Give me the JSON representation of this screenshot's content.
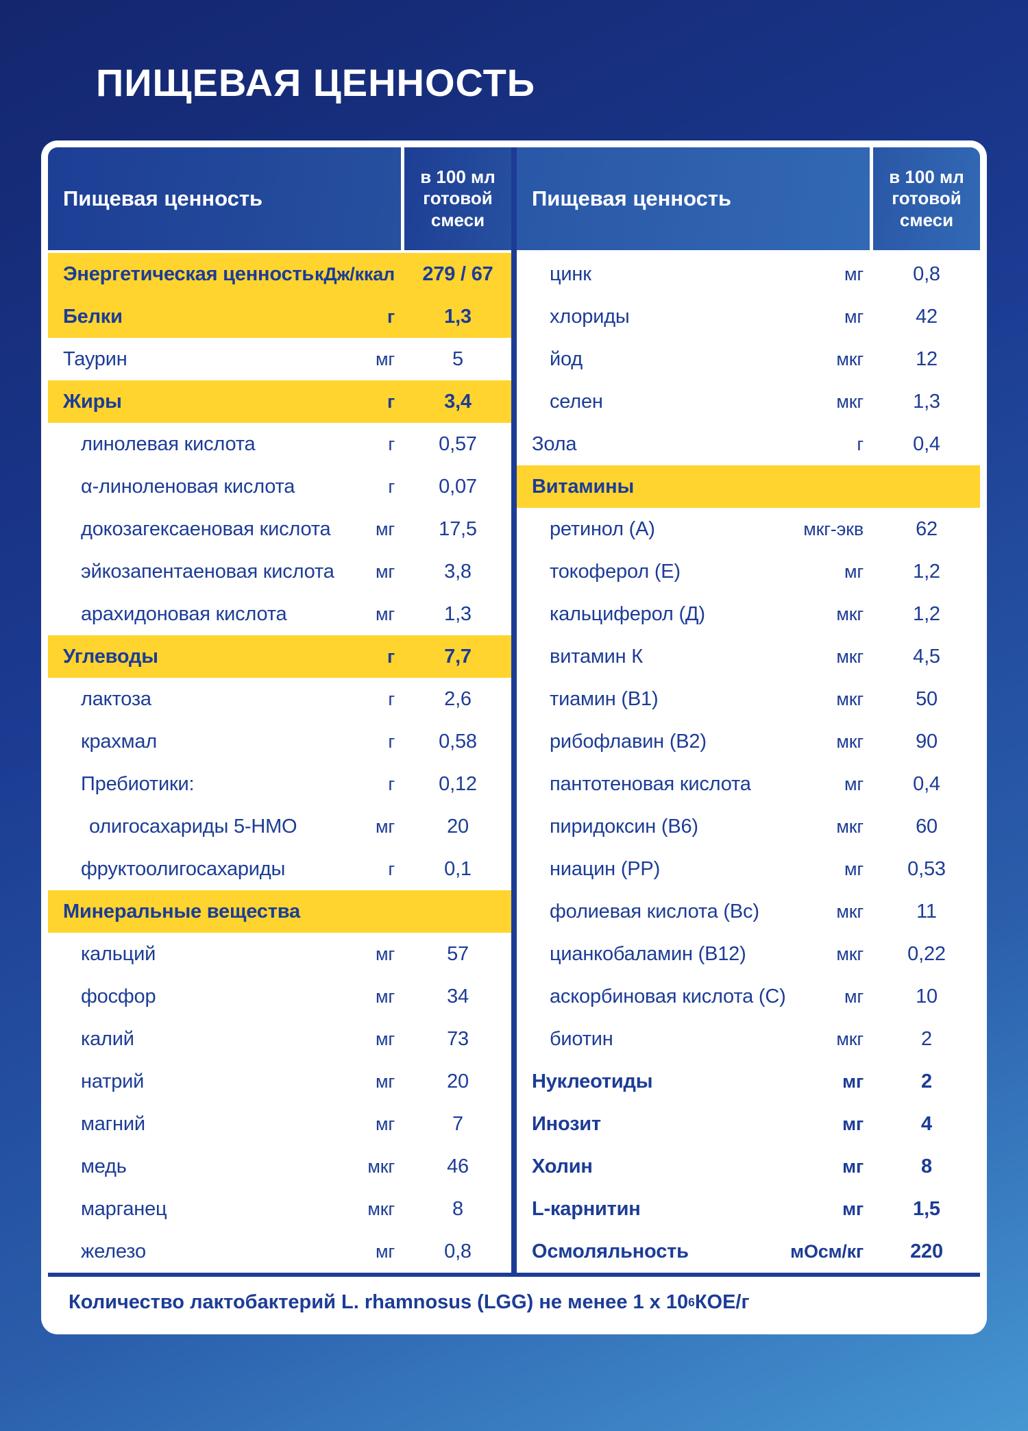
{
  "title": "ПИЩЕВАЯ ЦЕННОСТЬ",
  "colors": {
    "accent_yellow": "#FFD42E",
    "text_navy": "#1C3C96",
    "background_top": "#14266E",
    "background_bottom": "#4697D2"
  },
  "header": {
    "name_label": "Пищевая ценность",
    "value_label": "в 100 мл готовой смеси"
  },
  "tables": {
    "left": {
      "rows": [
        {
          "name": "Энергетическая ценность",
          "unit": "кДж/ккал",
          "value": "279 / 67",
          "style": "section",
          "indent": 0
        },
        {
          "name": "Белки",
          "unit": "г",
          "value": "1,3",
          "style": "section",
          "indent": 0
        },
        {
          "name": "Таурин",
          "unit": "мг",
          "value": "5",
          "style": "normal",
          "indent": 0
        },
        {
          "name": "Жиры",
          "unit": "г",
          "value": "3,4",
          "style": "section",
          "indent": 0
        },
        {
          "name": "линолевая кислота",
          "unit": "г",
          "value": "0,57",
          "style": "normal",
          "indent": 1
        },
        {
          "name": "α-линоленовая кислота",
          "unit": "г",
          "value": "0,07",
          "style": "normal",
          "indent": 1
        },
        {
          "name": "докозагексаеновая кислота",
          "unit": "мг",
          "value": "17,5",
          "style": "normal",
          "indent": 1
        },
        {
          "name": "эйкозапентаеновая кислота",
          "unit": "мг",
          "value": "3,8",
          "style": "normal",
          "indent": 1
        },
        {
          "name": "арахидоновая кислота",
          "unit": "мг",
          "value": "1,3",
          "style": "normal",
          "indent": 1
        },
        {
          "name": "Углеводы",
          "unit": "г",
          "value": "7,7",
          "style": "section",
          "indent": 0
        },
        {
          "name": "лактоза",
          "unit": "г",
          "value": "2,6",
          "style": "normal",
          "indent": 1
        },
        {
          "name": "крахмал",
          "unit": "г",
          "value": "0,58",
          "style": "normal",
          "indent": 1
        },
        {
          "name": "Пребиотики:",
          "unit": "г",
          "value": "0,12",
          "style": "normal",
          "indent": 1
        },
        {
          "name": "олигосахариды 5-НМО",
          "unit": "мг",
          "value": "20",
          "style": "normal",
          "indent": 2
        },
        {
          "name": "фруктоолигосахариды",
          "unit": "г",
          "value": "0,1",
          "style": "normal",
          "indent": 1
        },
        {
          "name": "Минеральные вещества",
          "unit": "",
          "value": "",
          "style": "section",
          "indent": 0
        },
        {
          "name": "кальций",
          "unit": "мг",
          "value": "57",
          "style": "normal",
          "indent": 1
        },
        {
          "name": "фосфор",
          "unit": "мг",
          "value": "34",
          "style": "normal",
          "indent": 1
        },
        {
          "name": "калий",
          "unit": "мг",
          "value": "73",
          "style": "normal",
          "indent": 1
        },
        {
          "name": "натрий",
          "unit": "мг",
          "value": "20",
          "style": "normal",
          "indent": 1
        },
        {
          "name": "магний",
          "unit": "мг",
          "value": "7",
          "style": "normal",
          "indent": 1
        },
        {
          "name": "медь",
          "unit": "мкг",
          "value": "46",
          "style": "normal",
          "indent": 1
        },
        {
          "name": "марганец",
          "unit": "мкг",
          "value": "8",
          "style": "normal",
          "indent": 1
        },
        {
          "name": "железо",
          "unit": "мг",
          "value": "0,8",
          "style": "normal",
          "indent": 1
        }
      ]
    },
    "right": {
      "rows": [
        {
          "name": "цинк",
          "unit": "мг",
          "value": "0,8",
          "style": "normal",
          "indent": 1
        },
        {
          "name": "хлориды",
          "unit": "мг",
          "value": "42",
          "style": "normal",
          "indent": 1
        },
        {
          "name": "йод",
          "unit": "мкг",
          "value": "12",
          "style": "normal",
          "indent": 1
        },
        {
          "name": "селен",
          "unit": "мкг",
          "value": "1,3",
          "style": "normal",
          "indent": 1
        },
        {
          "name": "Зола",
          "unit": "г",
          "value": "0,4",
          "style": "normal",
          "indent": 0
        },
        {
          "name": "Витамины",
          "unit": "",
          "value": "",
          "style": "section",
          "indent": 0
        },
        {
          "name": "ретинол (А)",
          "unit": "мкг-экв",
          "value": "62",
          "style": "normal",
          "indent": 1
        },
        {
          "name": "токоферол (Е)",
          "unit": "мг",
          "value": "1,2",
          "style": "normal",
          "indent": 1
        },
        {
          "name": "кальциферол (Д)",
          "unit": "мкг",
          "value": "1,2",
          "style": "normal",
          "indent": 1
        },
        {
          "name": "витамин К",
          "unit": "мкг",
          "value": "4,5",
          "style": "normal",
          "indent": 1
        },
        {
          "name": "тиамин (В1)",
          "unit": "мкг",
          "value": "50",
          "style": "normal",
          "indent": 1
        },
        {
          "name": "рибофлавин (В2)",
          "unit": "мкг",
          "value": "90",
          "style": "normal",
          "indent": 1
        },
        {
          "name": "пантотеновая кислота",
          "unit": "мг",
          "value": "0,4",
          "style": "normal",
          "indent": 1
        },
        {
          "name": "пиридоксин (В6)",
          "unit": "мкг",
          "value": "60",
          "style": "normal",
          "indent": 1
        },
        {
          "name": "ниацин (РР)",
          "unit": "мг",
          "value": "0,53",
          "style": "normal",
          "indent": 1
        },
        {
          "name": "фолиевая кислота (Вс)",
          "unit": "мкг",
          "value": "11",
          "style": "normal",
          "indent": 1
        },
        {
          "name": "цианкобаламин (В12)",
          "unit": "мкг",
          "value": "0,22",
          "style": "normal",
          "indent": 1
        },
        {
          "name": "аскорбиновая кислота (С)",
          "unit": "мг",
          "value": "10",
          "style": "normal",
          "indent": 1
        },
        {
          "name": "биотин",
          "unit": "мкг",
          "value": "2",
          "style": "normal",
          "indent": 1
        },
        {
          "name": "Нуклеотиды",
          "unit": "мг",
          "value": "2",
          "style": "bold",
          "indent": 0
        },
        {
          "name": "Инозит",
          "unit": "мг",
          "value": "4",
          "style": "bold",
          "indent": 0
        },
        {
          "name": "Холин",
          "unit": "мг",
          "value": "8",
          "style": "bold",
          "indent": 0
        },
        {
          "name": "L-карнитин",
          "unit": "мг",
          "value": "1,5",
          "style": "bold",
          "indent": 0
        },
        {
          "name": "Осмоляльность",
          "unit": "мОсм/кг",
          "value": "220",
          "style": "bold",
          "indent": 0
        }
      ]
    }
  },
  "footnote": {
    "prefix": "Количество лактобактерий L. rhamnosus (LGG) не менее 1 x 10",
    "sup": "6",
    "suffix": " КОЕ/г"
  }
}
